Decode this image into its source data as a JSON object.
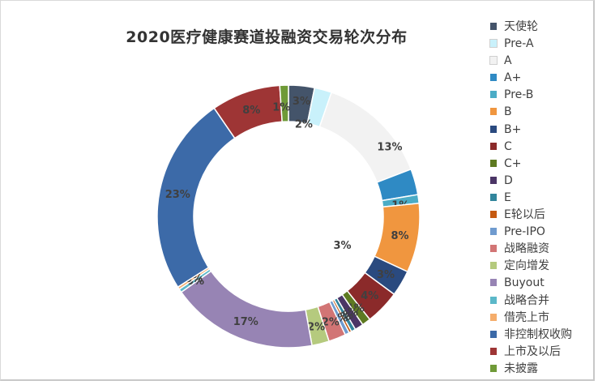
{
  "chart_data": {
    "type": "pie",
    "subtype": "donut",
    "title": "2020医疗健康赛道投融资交易轮次分布",
    "legend_position": "right",
    "slices": [
      {
        "name": "天使轮",
        "value": 3,
        "color": "#44546a"
      },
      {
        "name": "Pre-A",
        "value": 2,
        "color": "#c9f1fb"
      },
      {
        "name": "A",
        "value": 13,
        "color": "#f2f2f2"
      },
      {
        "name": "A+",
        "value": 3,
        "color": "#2f8ac4"
      },
      {
        "name": "Pre-B",
        "value": 1,
        "color": "#4bacc6"
      },
      {
        "name": "B",
        "value": 8,
        "color": "#f0963f"
      },
      {
        "name": "B+",
        "value": 3,
        "color": "#2a4a7f"
      },
      {
        "name": "C",
        "value": 4,
        "color": "#8b2a2a"
      },
      {
        "name": "C+",
        "value": 1,
        "color": "#5e7a21"
      },
      {
        "name": "D",
        "value": 1,
        "color": "#4b3566"
      },
      {
        "name": "E",
        "value": 0.5,
        "color": "#31859c"
      },
      {
        "name": "E轮以后",
        "value": 0.3,
        "color": "#c55a11"
      },
      {
        "name": "Pre-IPO",
        "value": 0.5,
        "color": "#6f9bcf"
      },
      {
        "name": "战略融资",
        "value": 2,
        "color": "#d27575"
      },
      {
        "name": "定向增发",
        "value": 2,
        "color": "#b5ca7e"
      },
      {
        "name": "Buyout",
        "value": 17,
        "color": "#9784b4"
      },
      {
        "name": "战略合并",
        "value": 0.4,
        "color": "#5bb8c9"
      },
      {
        "name": "借壳上市",
        "value": 0.3,
        "color": "#f5ad6b"
      },
      {
        "name": "非控制权收购",
        "value": 23,
        "color": "#3c6aa8"
      },
      {
        "name": "上市及以后",
        "value": 8,
        "color": "#9e3535"
      },
      {
        "name": "未披露",
        "value": 1,
        "color": "#6f9a37"
      }
    ],
    "data_labels": [
      "3%",
      "2%",
      "13%",
      "3%",
      "1%",
      "8%",
      "3%",
      "4%",
      "1%",
      "1%",
      "0%",
      "0%",
      "0%",
      "2%",
      "2%",
      "17%",
      "0%",
      "0%",
      "23%",
      "8%",
      "1%"
    ]
  }
}
